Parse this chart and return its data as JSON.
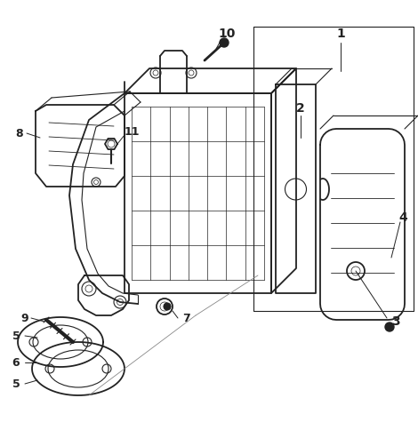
{
  "background_color": "#ffffff",
  "line_color": "#222222",
  "lw_main": 1.3,
  "lw_thin": 0.8,
  "lw_grid": 0.5
}
